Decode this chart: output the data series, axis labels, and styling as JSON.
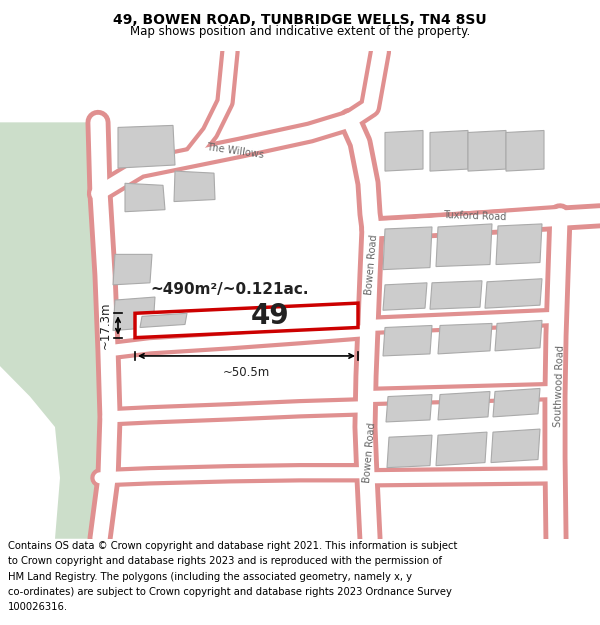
{
  "title": "49, BOWEN ROAD, TUNBRIDGE WELLS, TN4 8SU",
  "subtitle": "Map shows position and indicative extent of the property.",
  "footer_lines": [
    "Contains OS data © Crown copyright and database right 2021. This information is subject",
    "to Crown copyright and database rights 2023 and is reproduced with the permission of",
    "HM Land Registry. The polygons (including the associated geometry, namely x, y",
    "co-ordinates) are subject to Crown copyright and database rights 2023 Ordnance Survey",
    "100026316."
  ],
  "bg_color": "#f0f0ec",
  "green_color": "#ccdeca",
  "road_border_color": "#e09090",
  "road_fill_color": "#ffffff",
  "bld_fill": "#cccccc",
  "bld_edge": "#aaaaaa",
  "prop_fill": "#ffffff",
  "prop_edge": "#cc0000",
  "text_dark": "#222222",
  "text_road": "#666666",
  "area_text": "~490m²/~0.121ac.",
  "width_text": "~50.5m",
  "height_text": "~17.3m",
  "prop_label": "49",
  "title_fontsize": 10,
  "subtitle_fontsize": 8.5,
  "footer_fontsize": 7.2,
  "area_fontsize": 11,
  "prop_fontsize": 20,
  "meas_fontsize": 8.5,
  "road_fontsize": 7
}
